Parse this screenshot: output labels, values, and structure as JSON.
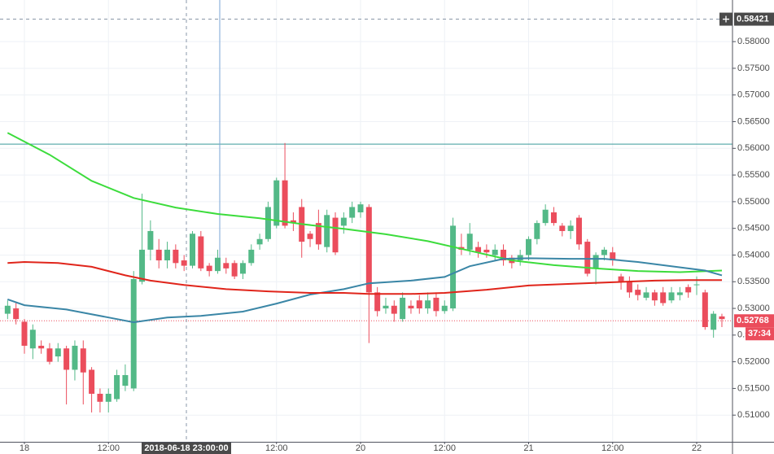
{
  "chart_data": {
    "type": "candlestick",
    "categories": [
      null,
      null,
      "18",
      null,
      null,
      null,
      null,
      null,
      null,
      null,
      null,
      null,
      "12:00",
      null,
      null,
      null,
      null,
      null,
      null,
      null,
      null,
      null,
      null,
      null,
      null,
      null,
      null,
      null,
      null,
      null,
      null,
      null,
      "12:00",
      null,
      null,
      null,
      null,
      null,
      null,
      null,
      null,
      null,
      "20",
      null,
      null,
      null,
      null,
      null,
      null,
      null,
      null,
      null,
      "12:00",
      null,
      null,
      null,
      null,
      null,
      null,
      null,
      null,
      null,
      "21",
      null,
      null,
      null,
      null,
      null,
      null,
      null,
      null,
      null,
      "12:00",
      null,
      null,
      null,
      null,
      null,
      null,
      null,
      null,
      null,
      "22",
      null,
      null,
      null
    ],
    "open": [
      0.529,
      0.53,
      0.5275,
      0.5225,
      0.523,
      0.5225,
      0.521,
      0.5225,
      0.5185,
      0.5225,
      0.5185,
      0.514,
      0.5125,
      0.513,
      0.5155,
      0.515,
      0.535,
      0.541,
      0.541,
      0.539,
      0.541,
      0.539,
      0.538,
      0.5435,
      0.538,
      0.537,
      0.5385,
      0.5385,
      0.5365,
      0.5385,
      0.542,
      0.543,
      0.5455,
      0.554,
      0.5465,
      0.549,
      0.544,
      0.546,
      0.5415,
      0.547,
      0.5455,
      0.547,
      0.548,
      0.549,
      0.533,
      0.53,
      0.5305,
      0.528,
      0.5305,
      0.5315,
      0.53,
      0.532,
      0.5295,
      0.53,
      0.5415,
      0.541,
      0.5415,
      0.541,
      0.54,
      0.541,
      0.5395,
      0.539,
      0.54,
      0.543,
      0.546,
      0.548,
      0.5455,
      0.5445,
      0.547,
      0.5425,
      0.5375,
      0.54,
      0.5405,
      0.536,
      0.535,
      0.5335,
      0.532,
      0.533,
      0.533,
      0.5315,
      0.5325,
      0.534,
      0.5345,
      0.533,
      0.526,
      0.5285
    ],
    "high": [
      0.5315,
      0.531,
      0.528,
      0.527,
      0.524,
      0.5235,
      0.5235,
      0.523,
      0.524,
      0.524,
      0.519,
      0.515,
      0.515,
      0.5185,
      0.5195,
      0.537,
      0.5515,
      0.5465,
      0.543,
      0.5425,
      0.542,
      0.54,
      0.5445,
      0.5445,
      0.5385,
      0.541,
      0.5395,
      0.539,
      0.539,
      0.542,
      0.544,
      0.55,
      0.5545,
      0.561,
      0.548,
      0.5505,
      0.5445,
      0.5485,
      0.5485,
      0.548,
      0.548,
      0.55,
      0.55,
      0.5495,
      0.534,
      0.532,
      0.5315,
      0.533,
      0.5315,
      0.5325,
      0.533,
      0.533,
      0.5315,
      0.547,
      0.544,
      0.546,
      0.5425,
      0.542,
      0.542,
      0.542,
      0.54,
      0.541,
      0.5435,
      0.5465,
      0.5495,
      0.549,
      0.546,
      0.5465,
      0.5475,
      0.543,
      0.5405,
      0.5415,
      0.5415,
      0.5365,
      0.536,
      0.5345,
      0.534,
      0.5335,
      0.534,
      0.534,
      0.534,
      0.5345,
      0.536,
      0.5335,
      0.5295,
      0.529
    ],
    "low": [
      0.528,
      0.527,
      0.5215,
      0.5205,
      0.5215,
      0.5195,
      0.52,
      0.512,
      0.5165,
      0.512,
      0.5105,
      0.5105,
      0.5105,
      0.5125,
      0.5145,
      0.5145,
      0.5345,
      0.539,
      0.5375,
      0.5375,
      0.5375,
      0.537,
      0.5375,
      0.537,
      0.536,
      0.5365,
      0.5365,
      0.5355,
      0.5355,
      0.538,
      0.541,
      0.5425,
      0.545,
      0.545,
      0.5445,
      0.5395,
      0.5415,
      0.541,
      0.5405,
      0.54,
      0.544,
      0.546,
      0.547,
      0.5235,
      0.5285,
      0.529,
      0.5275,
      0.5275,
      0.529,
      0.529,
      0.529,
      0.5285,
      0.529,
      0.5295,
      0.54,
      0.54,
      0.5395,
      0.5395,
      0.539,
      0.538,
      0.5375,
      0.538,
      0.539,
      0.542,
      0.5455,
      0.5455,
      0.5435,
      0.543,
      0.541,
      0.536,
      0.5345,
      0.539,
      0.538,
      0.5335,
      0.532,
      0.5315,
      0.5315,
      0.5305,
      0.5305,
      0.531,
      0.5315,
      0.532,
      0.5325,
      0.526,
      0.5245,
      0.5265
    ],
    "close": [
      0.5305,
      0.528,
      0.523,
      0.526,
      0.5225,
      0.52,
      0.5225,
      0.5185,
      0.523,
      0.518,
      0.514,
      0.5125,
      0.514,
      0.5175,
      0.5175,
      0.5355,
      0.541,
      0.5445,
      0.539,
      0.541,
      0.5385,
      0.538,
      0.544,
      0.5375,
      0.537,
      0.5395,
      0.5375,
      0.536,
      0.5385,
      0.541,
      0.543,
      0.549,
      0.554,
      0.5455,
      0.546,
      0.5425,
      0.543,
      0.542,
      0.5475,
      0.5405,
      0.547,
      0.549,
      0.5495,
      0.533,
      0.5295,
      0.5305,
      0.529,
      0.532,
      0.53,
      0.53,
      0.5315,
      0.5295,
      0.5305,
      0.5455,
      0.541,
      0.544,
      0.5405,
      0.5405,
      0.541,
      0.539,
      0.5385,
      0.54,
      0.543,
      0.546,
      0.5485,
      0.546,
      0.5445,
      0.5455,
      0.542,
      0.5365,
      0.54,
      0.541,
      0.539,
      0.535,
      0.533,
      0.5325,
      0.533,
      0.5315,
      0.531,
      0.533,
      0.533,
      0.533,
      0.5345,
      0.5265,
      0.529,
      0.528
    ],
    "up_color": "#53b987",
    "down_color": "#eb4d5c",
    "lines": [
      {
        "color": "#3cdc3c",
        "x": [
          0,
          5,
          10,
          15,
          20,
          25,
          30,
          35,
          40,
          45,
          50,
          55,
          60,
          65,
          70,
          75,
          80,
          85
        ],
        "values": [
          0.5629,
          0.5588,
          0.5539,
          0.5507,
          0.5489,
          0.5477,
          0.5469,
          0.5458,
          0.5449,
          0.5439,
          0.5426,
          0.5408,
          0.539,
          0.5381,
          0.5375,
          0.537,
          0.5368,
          0.5371
        ]
      },
      {
        "color": "#3a86a6",
        "x": [
          0,
          2,
          7,
          12,
          15,
          19,
          23,
          28,
          32,
          36,
          40,
          43,
          48,
          52,
          55,
          59,
          62,
          67,
          71,
          75,
          79,
          83,
          85
        ],
        "values": [
          0.5317,
          0.5306,
          0.5298,
          0.5283,
          0.5274,
          0.5283,
          0.5286,
          0.5294,
          0.5309,
          0.5326,
          0.5336,
          0.5347,
          0.5352,
          0.5359,
          0.5379,
          0.5393,
          0.5394,
          0.5393,
          0.5393,
          0.5387,
          0.5379,
          0.5371,
          0.5362
        ]
      },
      {
        "color": "#e0251b",
        "x": [
          0,
          2,
          6,
          10,
          14,
          17,
          21,
          26,
          31,
          36,
          40,
          43,
          48,
          52,
          57,
          62,
          67,
          72,
          77,
          81,
          85
        ],
        "values": [
          0.5385,
          0.5387,
          0.5385,
          0.5378,
          0.5362,
          0.5352,
          0.5344,
          0.5336,
          0.5332,
          0.5329,
          0.5329,
          0.5327,
          0.5327,
          0.5329,
          0.5335,
          0.5343,
          0.5346,
          0.5349,
          0.5352,
          0.5353,
          0.5353
        ]
      }
    ],
    "hline": 0.5608,
    "hline_color": "#3a9a9a",
    "last_price": 0.52768,
    "countdown": "37:34",
    "crosshair": {
      "x_label": "2018-06-18 23:00:00",
      "y_value": 0.58421
    },
    "ylim": [
      0.505,
      0.5878
    ],
    "yticks": [
      {
        "value": 0.51,
        "label": "0.51000"
      },
      {
        "value": 0.515,
        "label": "0.51500"
      },
      {
        "value": 0.52,
        "label": "0.52000"
      },
      {
        "value": 0.525,
        "label": "0.52500"
      },
      {
        "value": 0.53,
        "label": "0.53000"
      },
      {
        "value": 0.535,
        "label": "0.53500"
      },
      {
        "value": 0.54,
        "label": "0.54000"
      },
      {
        "value": 0.545,
        "label": "0.54500"
      },
      {
        "value": 0.55,
        "label": "0.55000"
      },
      {
        "value": 0.555,
        "label": "0.55500"
      },
      {
        "value": 0.56,
        "label": "0.56000"
      },
      {
        "value": 0.565,
        "label": "0.56500"
      },
      {
        "value": 0.57,
        "label": "0.57000"
      },
      {
        "value": 0.575,
        "label": "0.57500"
      },
      {
        "value": 0.58,
        "label": "0.58000"
      }
    ],
    "grid": true
  }
}
